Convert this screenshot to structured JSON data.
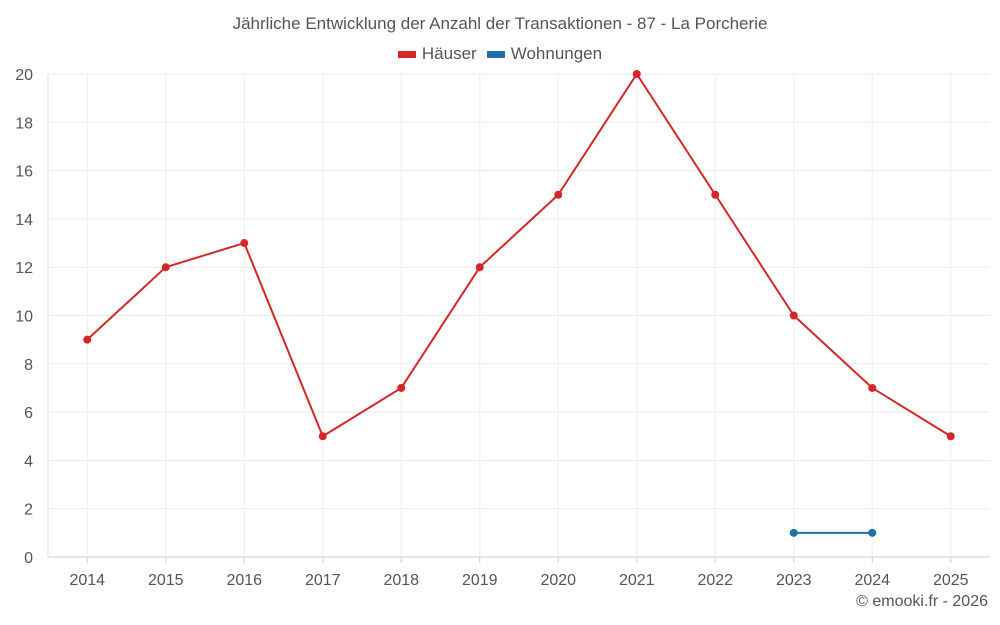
{
  "chart_data": {
    "type": "line",
    "title": "Jährliche Entwicklung der Anzahl der Transaktionen - 87 - La Porcherie",
    "categories": [
      "2014",
      "2015",
      "2016",
      "2017",
      "2018",
      "2019",
      "2020",
      "2021",
      "2022",
      "2023",
      "2024",
      "2025"
    ],
    "ylim": [
      0,
      20
    ],
    "yticks": [
      0,
      2,
      4,
      6,
      8,
      10,
      12,
      14,
      16,
      18,
      20
    ],
    "grid": true,
    "legend_position": "top-center",
    "series": [
      {
        "name": "Häuser",
        "color": "#d62728",
        "values": [
          9,
          12,
          13,
          5,
          7,
          12,
          15,
          20,
          15,
          10,
          7,
          5
        ]
      },
      {
        "name": "Wohnungen",
        "color": "#1f6fa8",
        "values": [
          null,
          null,
          null,
          null,
          null,
          null,
          null,
          null,
          null,
          1,
          1,
          null
        ]
      }
    ]
  },
  "credit": "© emooki.fr - 2026"
}
